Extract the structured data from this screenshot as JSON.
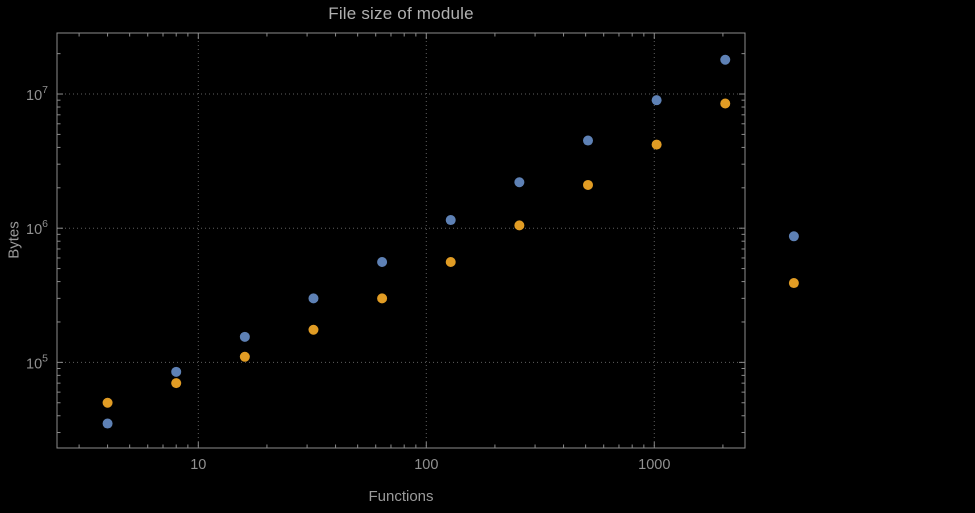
{
  "chart_data": {
    "type": "scatter",
    "title": "File size of module",
    "xlabel": "Functions",
    "ylabel": "Bytes",
    "x_scale": "log",
    "y_scale": "log",
    "xlim": [
      2.4,
      2500
    ],
    "ylim": [
      23000,
      28500000
    ],
    "grid": "dotted-major-both-axes",
    "legend": "none",
    "x": [
      4,
      8,
      16,
      32,
      64,
      128,
      256,
      512,
      1024,
      2048,
      4096
    ],
    "series": [
      {
        "name": "blue",
        "color": "#5e81b5",
        "values": [
          35000,
          85000,
          155000,
          300000,
          560000,
          1150000,
          2200000,
          4500000,
          9000000,
          18000000,
          870000
        ]
      },
      {
        "name": "orange",
        "color": "#e19c24",
        "values": [
          50000,
          70000,
          110000,
          175000,
          300000,
          560000,
          1050000,
          2100000,
          4200000,
          8500000,
          390000
        ]
      }
    ],
    "x_ticks": [
      {
        "value": 10,
        "label": "10"
      },
      {
        "value": 100,
        "label": "100"
      },
      {
        "value": 1000,
        "label": "1000"
      }
    ],
    "y_ticks": [
      {
        "value": 100000,
        "mantissa": "10",
        "exponent": "5"
      },
      {
        "value": 1000000,
        "mantissa": "10",
        "exponent": "6"
      },
      {
        "value": 10000000,
        "mantissa": "10",
        "exponent": "7"
      }
    ],
    "colors": {
      "background": "#000000",
      "frame": "#8c8c8c",
      "grid": "#5f5f5f",
      "text": "#909090"
    }
  }
}
